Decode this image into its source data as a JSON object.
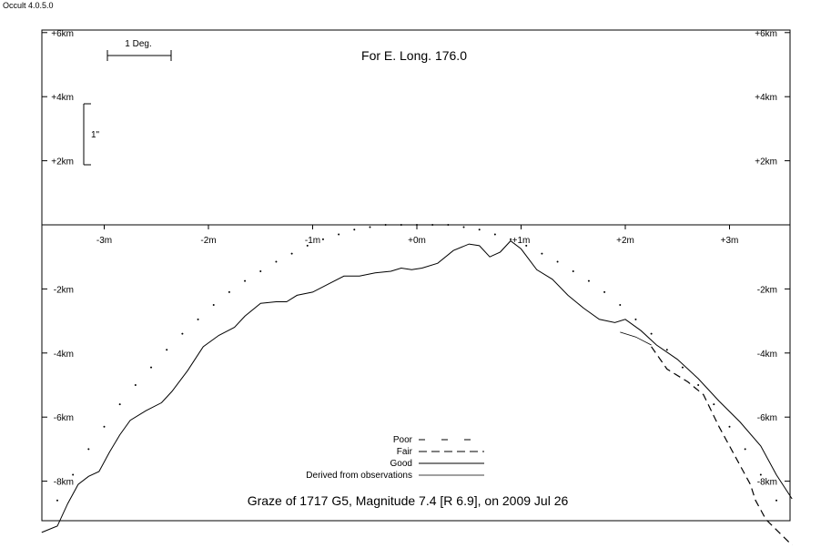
{
  "app": {
    "title": "Occult 4.0.5.0"
  },
  "chart_data": {
    "type": "line",
    "title": "Graze of  1717 G5,  Magnitude 7.4 [R 6.9],  on 2009 Jul 26",
    "subtitle": "For E. Long. 176.0",
    "xlim": [
      -3.6,
      3.6
    ],
    "ylim": [
      -9.3,
      6.1
    ],
    "x_ticks": [
      {
        "value": -3,
        "label": "-3m"
      },
      {
        "value": -2,
        "label": "-2m"
      },
      {
        "value": -1,
        "label": "-1m"
      },
      {
        "value": 0,
        "label": "+0m"
      },
      {
        "value": 1,
        "label": "+1m"
      },
      {
        "value": 2,
        "label": "+2m"
      },
      {
        "value": 3,
        "label": "+3m"
      }
    ],
    "y_ticks": [
      {
        "value": 6,
        "label": "+6km"
      },
      {
        "value": 4,
        "label": "+4km"
      },
      {
        "value": 2,
        "label": "+2km"
      },
      {
        "value": -2,
        "label": "-2km"
      },
      {
        "value": -4,
        "label": "-4km"
      },
      {
        "value": -6,
        "label": "-6km"
      },
      {
        "value": -8,
        "label": "-8km"
      }
    ],
    "scale_bars": {
      "horizontal_label": "1 Deg.",
      "vertical_label": "1\""
    },
    "legend": {
      "position": "bottom-center",
      "entries": [
        {
          "label": "Poor",
          "style": "sparse-dash"
        },
        {
          "label": "Fair",
          "style": "dash"
        },
        {
          "label": "Good",
          "style": "solid"
        },
        {
          "label": "Derived from observations",
          "style": "thin-solid"
        }
      ]
    },
    "series": [
      {
        "style": "dotted",
        "points": [
          [
            -3.45,
            -8.6
          ],
          [
            -3.3,
            -7.8
          ],
          [
            -3.15,
            -7.0
          ],
          [
            -3.0,
            -6.3
          ],
          [
            -2.85,
            -5.6
          ],
          [
            -2.7,
            -5.0
          ],
          [
            -2.55,
            -4.45
          ],
          [
            -2.4,
            -3.9
          ],
          [
            -2.25,
            -3.4
          ],
          [
            -2.1,
            -2.95
          ],
          [
            -1.95,
            -2.5
          ],
          [
            -1.8,
            -2.1
          ],
          [
            -1.65,
            -1.75
          ],
          [
            -1.5,
            -1.45
          ],
          [
            -1.35,
            -1.15
          ],
          [
            -1.2,
            -0.9
          ],
          [
            -1.05,
            -0.65
          ],
          [
            -0.9,
            -0.45
          ],
          [
            -0.75,
            -0.3
          ],
          [
            -0.6,
            -0.15
          ],
          [
            -0.45,
            -0.07
          ],
          [
            -0.3,
            0.0
          ],
          [
            -0.15,
            0.0
          ],
          [
            0.0,
            0.0
          ],
          [
            0.15,
            0.0
          ],
          [
            0.3,
            0.0
          ],
          [
            0.45,
            -0.07
          ],
          [
            0.6,
            -0.15
          ],
          [
            0.75,
            -0.3
          ],
          [
            0.9,
            -0.45
          ],
          [
            1.05,
            -0.65
          ],
          [
            1.2,
            -0.9
          ],
          [
            1.35,
            -1.15
          ],
          [
            1.5,
            -1.45
          ],
          [
            1.65,
            -1.75
          ],
          [
            1.8,
            -2.1
          ],
          [
            1.95,
            -2.5
          ],
          [
            2.1,
            -2.95
          ],
          [
            2.25,
            -3.4
          ],
          [
            2.4,
            -3.9
          ],
          [
            2.55,
            -4.45
          ],
          [
            2.7,
            -5.0
          ],
          [
            2.85,
            -5.6
          ],
          [
            3.0,
            -6.3
          ],
          [
            3.15,
            -7.0
          ],
          [
            3.3,
            -7.8
          ],
          [
            3.45,
            -8.6
          ]
        ]
      },
      {
        "style": "solid",
        "points": [
          [
            -3.6,
            -9.6
          ],
          [
            -3.45,
            -9.4
          ],
          [
            -3.35,
            -8.7
          ],
          [
            -3.25,
            -8.1
          ],
          [
            -3.15,
            -7.85
          ],
          [
            -3.05,
            -7.7
          ],
          [
            -2.95,
            -7.1
          ],
          [
            -2.85,
            -6.55
          ],
          [
            -2.75,
            -6.1
          ],
          [
            -2.6,
            -5.8
          ],
          [
            -2.45,
            -5.55
          ],
          [
            -2.35,
            -5.2
          ],
          [
            -2.2,
            -4.55
          ],
          [
            -2.05,
            -3.8
          ],
          [
            -1.9,
            -3.45
          ],
          [
            -1.75,
            -3.2
          ],
          [
            -1.65,
            -2.85
          ],
          [
            -1.5,
            -2.45
          ],
          [
            -1.35,
            -2.4
          ],
          [
            -1.25,
            -2.4
          ],
          [
            -1.15,
            -2.2
          ],
          [
            -1.0,
            -2.1
          ],
          [
            -0.85,
            -1.85
          ],
          [
            -0.7,
            -1.6
          ],
          [
            -0.55,
            -1.6
          ],
          [
            -0.4,
            -1.5
          ],
          [
            -0.25,
            -1.45
          ],
          [
            -0.15,
            -1.35
          ],
          [
            -0.05,
            -1.4
          ],
          [
            0.05,
            -1.35
          ],
          [
            0.2,
            -1.2
          ],
          [
            0.35,
            -0.8
          ],
          [
            0.5,
            -0.6
          ],
          [
            0.6,
            -0.65
          ],
          [
            0.7,
            -1.0
          ],
          [
            0.8,
            -0.85
          ],
          [
            0.9,
            -0.5
          ],
          [
            1.0,
            -0.75
          ],
          [
            1.15,
            -1.4
          ],
          [
            1.3,
            -1.7
          ],
          [
            1.45,
            -2.2
          ],
          [
            1.6,
            -2.6
          ],
          [
            1.75,
            -2.95
          ],
          [
            1.9,
            -3.05
          ],
          [
            2.0,
            -2.95
          ],
          [
            2.15,
            -3.3
          ],
          [
            2.3,
            -3.75
          ],
          [
            2.5,
            -4.2
          ],
          [
            2.7,
            -4.8
          ],
          [
            2.9,
            -5.5
          ],
          [
            3.1,
            -6.15
          ],
          [
            3.3,
            -6.9
          ],
          [
            3.45,
            -7.8
          ],
          [
            3.6,
            -8.55
          ]
        ]
      },
      {
        "style": "dash",
        "points": [
          [
            2.25,
            -3.8
          ],
          [
            2.4,
            -4.5
          ],
          [
            2.6,
            -4.9
          ],
          [
            2.75,
            -5.3
          ],
          [
            2.9,
            -6.3
          ],
          [
            3.05,
            -7.2
          ],
          [
            3.2,
            -8.1
          ],
          [
            3.25,
            -8.6
          ],
          [
            3.35,
            -9.2
          ],
          [
            3.6,
            -10.0
          ]
        ]
      },
      {
        "style": "thin-solid",
        "points": [
          [
            1.95,
            -3.35
          ],
          [
            2.1,
            -3.5
          ],
          [
            2.25,
            -3.75
          ]
        ]
      }
    ]
  }
}
